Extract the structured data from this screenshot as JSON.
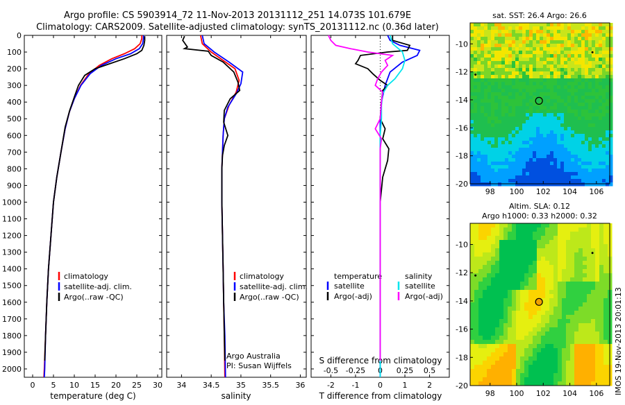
{
  "title": {
    "line1": "Argo profile: CS 5903914_72 11-Nov-2013 20131112_251 14.073S 101.679E",
    "line2": "Climatology: CARS2009. Satellite-adjusted climatology: synTS_20131112.nc (0.36d later)"
  },
  "depth_ticks": [
    0,
    100,
    200,
    300,
    400,
    500,
    600,
    700,
    800,
    900,
    1000,
    1100,
    1200,
    1300,
    1400,
    1500,
    1600,
    1700,
    1800,
    1900,
    2000
  ],
  "colors": {
    "climatology": "#ff0000",
    "satellite": "#0000ff",
    "argo": "#000000",
    "salinity_sat": "#00e5ee",
    "salinity_argo": "#ff00ff"
  },
  "chart_data": [
    {
      "type": "line",
      "name": "temperature-profile",
      "xlabel": "temperature (deg C)",
      "ylabel": "",
      "xlim": [
        -2,
        31
      ],
      "ylim": [
        2050,
        0
      ],
      "xticks": [
        0,
        5,
        10,
        15,
        20,
        25,
        30
      ],
      "legend": [
        "climatology",
        "satellite-adj. clim.",
        "Argo(..raw -QC)"
      ],
      "legend_position": "bottom-center",
      "series": [
        {
          "name": "climatology",
          "points": [
            [
              26.2,
              0
            ],
            [
              26.2,
              20
            ],
            [
              25.8,
              50
            ],
            [
              24.5,
              80
            ],
            [
              22,
              110
            ],
            [
              19,
              140
            ],
            [
              16,
              180
            ],
            [
              13.5,
              230
            ],
            [
              11.5,
              300
            ],
            [
              10,
              380
            ],
            [
              8.8,
              460
            ],
            [
              7.8,
              560
            ],
            [
              6.8,
              700
            ],
            [
              5.8,
              850
            ],
            [
              5,
              1000
            ],
            [
              4.4,
              1200
            ],
            [
              3.8,
              1400
            ],
            [
              3.4,
              1600
            ],
            [
              3.1,
              1800
            ],
            [
              2.8,
              2000
            ],
            [
              2.7,
              2050
            ]
          ]
        },
        {
          "name": "satellite-adj. clim.",
          "points": [
            [
              26.6,
              0
            ],
            [
              26.6,
              20
            ],
            [
              26.4,
              50
            ],
            [
              25.6,
              80
            ],
            [
              23.5,
              110
            ],
            [
              20,
              140
            ],
            [
              16.5,
              180
            ],
            [
              13.8,
              230
            ],
            [
              11.6,
              300
            ],
            [
              10,
              380
            ],
            [
              8.8,
              460
            ],
            [
              7.8,
              560
            ],
            [
              6.8,
              700
            ],
            [
              5.8,
              850
            ],
            [
              5,
              1000
            ],
            [
              4.4,
              1200
            ],
            [
              3.8,
              1400
            ],
            [
              3.4,
              1600
            ],
            [
              3.1,
              1800
            ],
            [
              2.9,
              2000
            ],
            [
              2.8,
              2050
            ]
          ]
        },
        {
          "name": "Argo(..raw -QC)",
          "points": [
            [
              26.9,
              5
            ],
            [
              26.9,
              30
            ],
            [
              26.7,
              60
            ],
            [
              26.2,
              90
            ],
            [
              25,
              110
            ],
            [
              22,
              140
            ],
            [
              18.5,
              170
            ],
            [
              15,
              200
            ],
            [
              12.5,
              240
            ],
            [
              11,
              300
            ],
            [
              10,
              370
            ],
            [
              8.9,
              450
            ],
            [
              7.8,
              550
            ],
            [
              6.8,
              700
            ],
            [
              5.8,
              850
            ],
            [
              5,
              1000
            ],
            [
              4.4,
              1200
            ],
            [
              3.8,
              1400
            ],
            [
              3.4,
              1600
            ],
            [
              3.1,
              1800
            ],
            [
              2.9,
              1950
            ]
          ]
        }
      ]
    },
    {
      "type": "line",
      "name": "salinity-profile",
      "xlabel": "salinity",
      "ylabel": "",
      "xlim": [
        33.75,
        36.1
      ],
      "ylim": [
        2050,
        0
      ],
      "xticks": [
        34,
        34.5,
        35,
        35.5,
        36
      ],
      "legend": [
        "climatology",
        "satellite-adj. clim.",
        "Argo(..raw -QC)"
      ],
      "legend_position": "bottom-right",
      "annotation": [
        "Argo Australia",
        "PI: Susan Wijffels"
      ],
      "series": [
        {
          "name": "climatology",
          "points": [
            [
              34.32,
              0
            ],
            [
              34.35,
              50
            ],
            [
              34.5,
              100
            ],
            [
              34.7,
              150
            ],
            [
              34.9,
              200
            ],
            [
              34.97,
              270
            ],
            [
              34.92,
              340
            ],
            [
              34.8,
              420
            ],
            [
              34.72,
              500
            ],
            [
              34.7,
              600
            ],
            [
              34.68,
              800
            ],
            [
              34.68,
              1000
            ],
            [
              34.69,
              1200
            ],
            [
              34.7,
              1400
            ],
            [
              34.71,
              1600
            ],
            [
              34.72,
              1800
            ],
            [
              34.73,
              2050
            ]
          ]
        },
        {
          "name": "satellite-adj. clim.",
          "points": [
            [
              34.35,
              0
            ],
            [
              34.38,
              50
            ],
            [
              34.55,
              100
            ],
            [
              34.8,
              160
            ],
            [
              35.03,
              220
            ],
            [
              35.0,
              290
            ],
            [
              34.92,
              350
            ],
            [
              34.78,
              430
            ],
            [
              34.72,
              500
            ],
            [
              34.7,
              600
            ],
            [
              34.68,
              800
            ],
            [
              34.68,
              1000
            ],
            [
              34.69,
              1200
            ],
            [
              34.7,
              1400
            ],
            [
              34.71,
              1600
            ],
            [
              34.73,
              1800
            ],
            [
              34.74,
              2050
            ]
          ]
        },
        {
          "name": "Argo(..raw -QC)",
          "points": [
            [
              34.05,
              5
            ],
            [
              34.02,
              30
            ],
            [
              34.1,
              70
            ],
            [
              34.05,
              80
            ],
            [
              34.45,
              95
            ],
            [
              34.5,
              120
            ],
            [
              34.7,
              160
            ],
            [
              34.88,
              220
            ],
            [
              34.95,
              280
            ],
            [
              34.98,
              330
            ],
            [
              34.82,
              380
            ],
            [
              34.72,
              450
            ],
            [
              34.71,
              520
            ],
            [
              34.78,
              600
            ],
            [
              34.72,
              660
            ],
            [
              34.69,
              720
            ],
            [
              34.68,
              800
            ],
            [
              34.68,
              1000
            ],
            [
              34.69,
              1200
            ],
            [
              34.7,
              1400
            ],
            [
              34.71,
              1600
            ],
            [
              34.72,
              1800
            ],
            [
              34.73,
              1950
            ]
          ]
        }
      ]
    },
    {
      "type": "line",
      "name": "difference-profile",
      "xlabel": "T difference from climatology",
      "xlabel_top": "S difference from climatology",
      "ylabel": "",
      "xlim": [
        -2.8,
        2.8
      ],
      "ylim": [
        2050,
        0
      ],
      "xticks": [
        -2,
        -1,
        0,
        1,
        2
      ],
      "xticks_s": [
        "-0.5",
        "-0.25",
        "0",
        "0.25",
        "0.5"
      ],
      "xticks_s_pos": [
        -2,
        -1,
        0,
        1,
        2
      ],
      "legend_temperature_title": "temperature",
      "legend_salinity_title": "salinity",
      "legend_temperature": [
        "satellite",
        "Argo(-adj)"
      ],
      "legend_salinity": [
        "satellite",
        "Argo(-adj)"
      ],
      "series": [
        {
          "name": "T satellite",
          "points": [
            [
              0.3,
              0
            ],
            [
              0.4,
              30
            ],
            [
              0.8,
              60
            ],
            [
              1.6,
              90
            ],
            [
              1.5,
              120
            ],
            [
              0.9,
              160
            ],
            [
              0.4,
              220
            ],
            [
              0.2,
              300
            ],
            [
              0.05,
              400
            ],
            [
              0.0,
              500
            ],
            [
              0.0,
              700
            ],
            [
              0.0,
              1000
            ],
            [
              0.0,
              1400
            ],
            [
              0.0,
              2050
            ]
          ]
        },
        {
          "name": "T Argo(-adj)",
          "points": [
            [
              0.5,
              0
            ],
            [
              0.5,
              30
            ],
            [
              1.2,
              60
            ],
            [
              1.1,
              90
            ],
            [
              0.3,
              100
            ],
            [
              -0.8,
              120
            ],
            [
              -0.9,
              150
            ],
            [
              -1.0,
              170
            ],
            [
              -0.5,
              200
            ],
            [
              -0.3,
              230
            ],
            [
              0.0,
              270
            ],
            [
              0.3,
              300
            ],
            [
              0.1,
              330
            ],
            [
              0.05,
              400
            ],
            [
              0.0,
              500
            ],
            [
              0.2,
              560
            ],
            [
              0.1,
              620
            ],
            [
              0.35,
              680
            ],
            [
              0.3,
              750
            ],
            [
              0.1,
              850
            ],
            [
              0.0,
              1000
            ],
            [
              0.0,
              1400
            ],
            [
              0.0,
              1950
            ]
          ]
        },
        {
          "name": "S satellite",
          "points": [
            [
              0.4,
              0
            ],
            [
              0.5,
              50
            ],
            [
              0.9,
              100
            ],
            [
              1.0,
              150
            ],
            [
              0.9,
              200
            ],
            [
              0.6,
              260
            ],
            [
              0.3,
              300
            ],
            [
              0.1,
              350
            ],
            [
              0.05,
              420
            ],
            [
              0.05,
              500
            ],
            [
              0.0,
              600
            ],
            [
              0.0,
              1000
            ],
            [
              0.0,
              1400
            ],
            [
              0.0,
              2050
            ]
          ]
        },
        {
          "name": "S Argo(-adj)",
          "points": [
            [
              -2.1,
              0
            ],
            [
              -2.0,
              30
            ],
            [
              -1.8,
              60
            ],
            [
              -1.2,
              80
            ],
            [
              -0.5,
              100
            ],
            [
              0.5,
              120
            ],
            [
              0.2,
              150
            ],
            [
              0.3,
              180
            ],
            [
              0.05,
              220
            ],
            [
              -0.1,
              260
            ],
            [
              -0.2,
              300
            ],
            [
              0.1,
              340
            ],
            [
              0.05,
              400
            ],
            [
              0.0,
              500
            ],
            [
              -0.2,
              560
            ],
            [
              0.05,
              620
            ],
            [
              0.0,
              680
            ],
            [
              0.0,
              800
            ],
            [
              0.0,
              1000
            ],
            [
              0.0,
              1400
            ],
            [
              0.0,
              1950
            ]
          ]
        }
      ]
    },
    {
      "type": "heatmap",
      "name": "sst-map",
      "title": "sat. SST: 26.4 Argo: 26.6",
      "xlim": [
        96.5,
        107
      ],
      "ylim": [
        -20,
        -8.5
      ],
      "xticks": [
        98,
        100,
        102,
        104,
        106
      ],
      "yticks": [
        -10,
        -12,
        -14,
        -16,
        -18,
        -20
      ],
      "profile_location": [
        101.68,
        -14.07
      ],
      "other_floats": [
        [
          105.7,
          -10.6
        ],
        [
          96.9,
          -12.2
        ]
      ],
      "palette": [
        "#0050e0",
        "#00a0ff",
        "#00d2e6",
        "#1fbf4f",
        "#2dc33a",
        "#7ad628",
        "#c9e51a",
        "#f4e600",
        "#ffb800"
      ]
    },
    {
      "type": "heatmap",
      "name": "sla-map",
      "title": "Altim. SLA: 0.12",
      "subtitle": "Argo h1000: 0.33 h2000: 0.32",
      "xlim": [
        96.5,
        107
      ],
      "ylim": [
        -20,
        -8.5
      ],
      "xticks": [
        98,
        100,
        102,
        104,
        106
      ],
      "yticks": [
        -10,
        -12,
        -14,
        -16,
        -18,
        -20
      ],
      "profile_location": [
        101.68,
        -14.07
      ],
      "other_floats": [
        [
          105.7,
          -10.6
        ],
        [
          96.9,
          -12.2
        ]
      ],
      "palette": [
        "#00c050",
        "#30d040",
        "#7ddc28",
        "#bde81a",
        "#e5ef10",
        "#fbd400",
        "#ffb000"
      ]
    }
  ],
  "watermark": "IMOS 19-Nov-2013 20:01:13"
}
